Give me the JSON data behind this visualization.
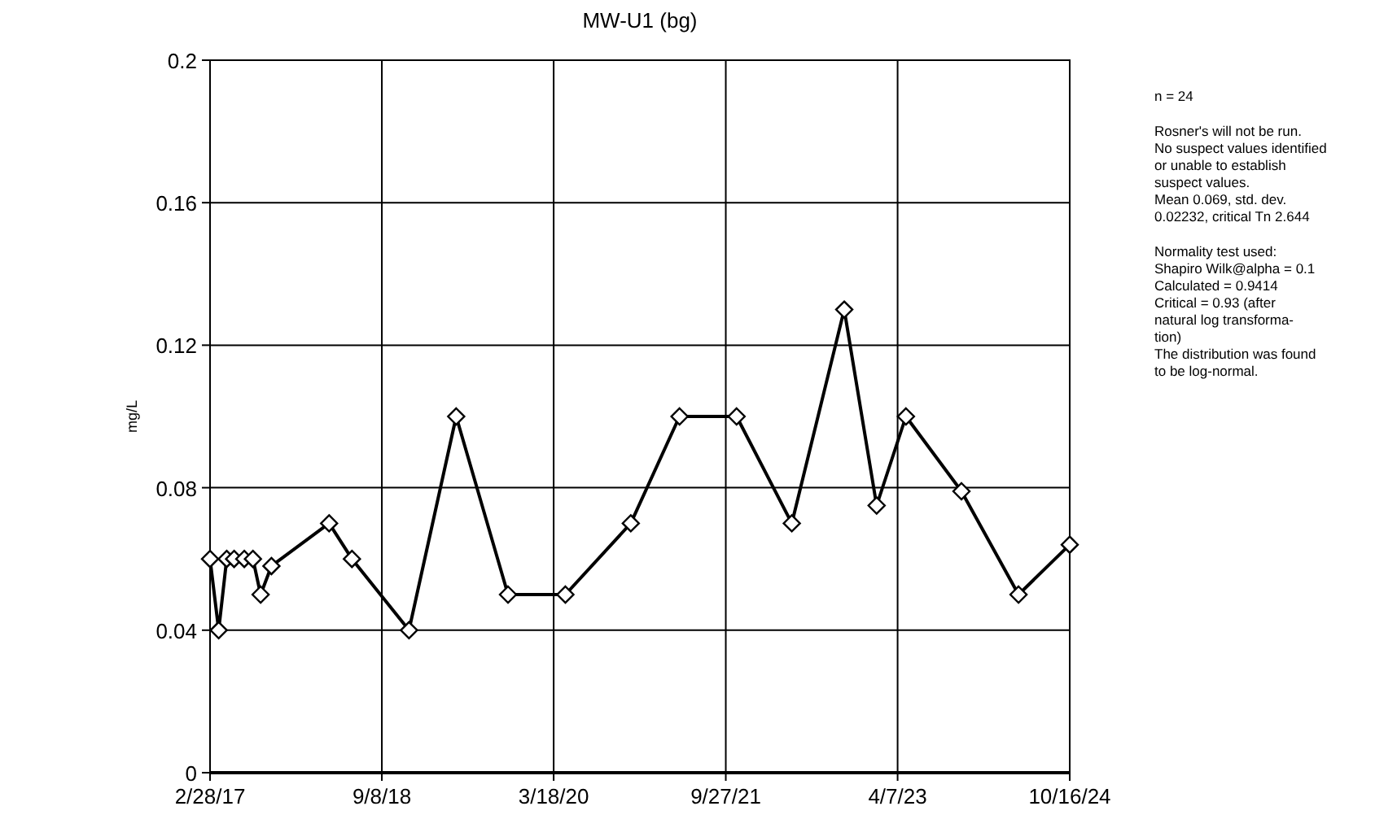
{
  "chart_data": {
    "type": "line",
    "title": "MW-U1 (bg)",
    "ylabel": "mg/L",
    "x": [
      "2017-02-28",
      "2017-03-28",
      "2017-04-23",
      "2017-05-17",
      "2017-06-19",
      "2017-07-17",
      "2017-08-11",
      "2017-09-15",
      "2018-03-21",
      "2018-06-03",
      "2018-12-05",
      "2019-05-07",
      "2019-10-22",
      "2020-04-25",
      "2020-11-23",
      "2021-04-30",
      "2021-11-01",
      "2022-04-29",
      "2022-10-16",
      "2023-01-29",
      "2023-05-04",
      "2023-10-31",
      "2024-05-03",
      "2024-10-16"
    ],
    "series": [
      {
        "color": "#000000",
        "values": [
          0.06,
          0.04,
          0.06,
          0.06,
          0.06,
          0.06,
          0.05,
          0.058,
          0.07,
          0.06,
          0.04,
          0.1,
          0.05,
          0.05,
          0.07,
          0.1,
          0.1,
          0.07,
          0.13,
          0.075,
          0.1,
          0.079,
          0.05,
          0.064
        ]
      }
    ],
    "xlim": [
      "2017-02-28",
      "2024-10-16"
    ],
    "xticks": [
      {
        "value": "2017-02-28",
        "label": "2/28/17"
      },
      {
        "value": "2018-09-08",
        "label": "9/8/18"
      },
      {
        "value": "2020-03-18",
        "label": "3/18/20"
      },
      {
        "value": "2021-09-27",
        "label": "9/27/21"
      },
      {
        "value": "2023-04-07",
        "label": "4/7/23"
      },
      {
        "value": "2024-10-16",
        "label": "10/16/24"
      }
    ],
    "ylim": [
      0,
      0.2
    ],
    "yticks": [
      0,
      0.04,
      0.08,
      0.12,
      0.16,
      0.2
    ],
    "grid": true,
    "marker": "diamond",
    "line_style": "solid",
    "annotations": [
      "n = 24",
      "Rosner's will not be run.\nNo suspect values identified\nor unable to establish\nsuspect values.\nMean 0.069, std. dev.\n0.02232, critical Tn 2.644",
      "Normality test used:\nShapiro Wilk@alpha = 0.1\nCalculated = 0.9414\nCritical = 0.93 (after\nnatural log transforma-\ntion)\nThe distribution was found\nto be log-normal."
    ]
  }
}
